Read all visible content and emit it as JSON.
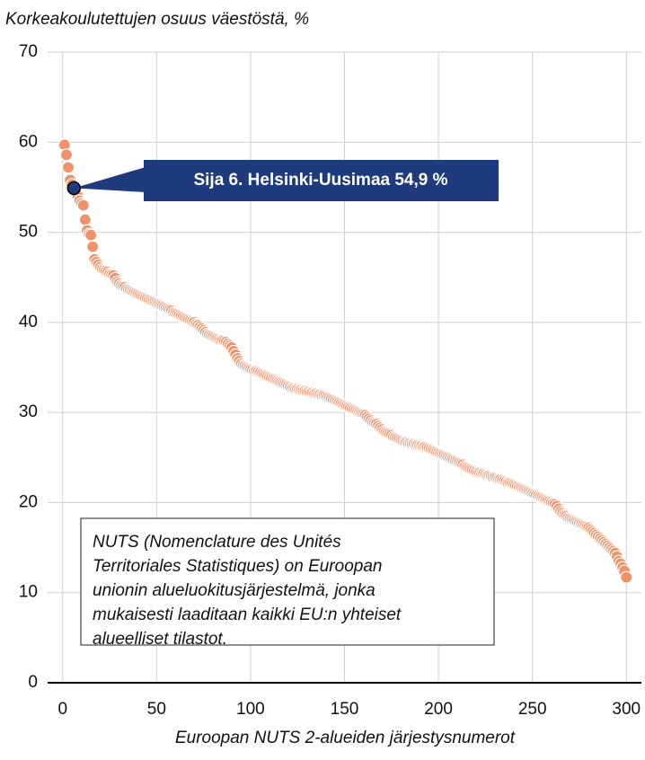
{
  "chart_data": {
    "type": "scatter",
    "title": "Korkeakoulutettujen osuus väestöstä, %",
    "xlabel": "Euroopan NUTS 2-alueiden järjestysnumerot",
    "xlim": [
      -8,
      308
    ],
    "ylim": [
      0,
      70
    ],
    "xticks": [
      0,
      50,
      100,
      150,
      200,
      250,
      300
    ],
    "yticks": [
      0,
      10,
      20,
      30,
      40,
      50,
      60,
      70
    ],
    "grid": true,
    "series": [
      {
        "color": "#f0916a",
        "x": [
          1,
          2,
          3,
          4,
          5,
          6,
          7,
          8,
          9,
          10,
          11,
          12,
          13,
          14,
          15,
          16,
          17,
          18,
          19,
          20,
          21,
          22,
          23,
          24,
          25,
          26,
          27,
          28,
          29,
          30,
          31,
          32,
          33,
          34,
          35,
          36,
          37,
          38,
          39,
          40,
          41,
          42,
          43,
          44,
          45,
          46,
          47,
          48,
          49,
          50,
          51,
          52,
          53,
          54,
          55,
          56,
          57,
          58,
          59,
          60,
          61,
          62,
          63,
          64,
          65,
          66,
          67,
          68,
          69,
          70,
          71,
          72,
          73,
          74,
          75,
          76,
          77,
          78,
          79,
          80,
          81,
          82,
          83,
          84,
          85,
          86,
          87,
          88,
          89,
          90,
          91,
          92,
          93,
          94,
          95,
          96,
          97,
          98,
          99,
          100,
          101,
          102,
          103,
          104,
          105,
          106,
          107,
          108,
          109,
          110,
          111,
          112,
          113,
          114,
          115,
          116,
          117,
          118,
          119,
          120,
          121,
          122,
          123,
          124,
          125,
          126,
          127,
          128,
          129,
          130,
          131,
          132,
          133,
          134,
          135,
          136,
          137,
          138,
          139,
          140,
          141,
          142,
          143,
          144,
          145,
          146,
          147,
          148,
          149,
          150,
          151,
          152,
          153,
          154,
          155,
          156,
          157,
          158,
          159,
          160,
          161,
          162,
          163,
          164,
          165,
          166,
          167,
          168,
          169,
          170,
          171,
          172,
          173,
          174,
          175,
          176,
          177,
          178,
          179,
          180,
          181,
          182,
          183,
          184,
          185,
          186,
          187,
          188,
          189,
          190,
          191,
          192,
          193,
          194,
          195,
          196,
          197,
          198,
          199,
          200,
          201,
          202,
          203,
          204,
          205,
          206,
          207,
          208,
          209,
          210,
          211,
          212,
          213,
          214,
          215,
          216,
          217,
          218,
          219,
          220,
          221,
          222,
          223,
          224,
          225,
          226,
          227,
          228,
          229,
          230,
          231,
          232,
          233,
          234,
          235,
          236,
          237,
          238,
          239,
          240,
          241,
          242,
          243,
          244,
          245,
          246,
          247,
          248,
          249,
          250,
          251,
          252,
          253,
          254,
          255,
          256,
          257,
          258,
          259,
          260,
          261,
          262,
          263,
          264,
          265,
          266,
          267,
          268,
          269,
          270,
          271,
          272,
          273,
          274,
          275,
          276,
          277,
          278,
          279,
          280,
          281,
          282,
          283,
          284,
          285,
          286,
          287,
          288,
          289,
          290,
          291,
          292,
          293,
          294,
          295,
          296,
          297,
          298,
          299,
          300
        ],
        "values": [
          59.7,
          58.6,
          57.2,
          55.8,
          55.3,
          54.9,
          54.5,
          54.0,
          53.5,
          53.2,
          53.0,
          51.4,
          50.2,
          49.8,
          49.7,
          48.4,
          47.0,
          46.7,
          46.4,
          46.1,
          45.9,
          45.8,
          45.7,
          45.6,
          45.4,
          45.3,
          45.2,
          44.9,
          44.5,
          44.3,
          44.1,
          44.0,
          43.9,
          43.7,
          43.6,
          43.5,
          43.4,
          43.3,
          43.2,
          43.1,
          43.0,
          42.9,
          42.8,
          42.7,
          42.6,
          42.5,
          42.4,
          42.3,
          42.2,
          42.1,
          42.0,
          41.9,
          41.8,
          41.7,
          41.6,
          41.5,
          41.4,
          41.3,
          41.1,
          41.0,
          40.9,
          40.8,
          40.7,
          40.6,
          40.5,
          40.4,
          40.3,
          40.2,
          40.1,
          40.0,
          39.8,
          39.7,
          39.5,
          39.3,
          39.1,
          38.9,
          38.7,
          38.6,
          38.5,
          38.4,
          38.3,
          38.2,
          38.1,
          38.0,
          38.0,
          37.9,
          37.8,
          37.6,
          37.4,
          37.2,
          36.8,
          36.4,
          36.0,
          35.7,
          35.4,
          35.2,
          35.1,
          35.0,
          34.9,
          34.8,
          34.7,
          34.6,
          34.6,
          34.5,
          34.4,
          34.3,
          34.2,
          34.1,
          34.0,
          33.9,
          33.8,
          33.7,
          33.6,
          33.5,
          33.4,
          33.3,
          33.2,
          33.1,
          33.0,
          32.9,
          32.8,
          32.7,
          32.7,
          32.6,
          32.6,
          32.5,
          32.5,
          32.4,
          32.4,
          32.3,
          32.3,
          32.2,
          32.2,
          32.1,
          32.1,
          32.0,
          32.0,
          31.9,
          31.9,
          31.8,
          31.7,
          31.6,
          31.5,
          31.4,
          31.3,
          31.2,
          31.1,
          31.0,
          30.9,
          30.8,
          30.7,
          30.6,
          30.5,
          30.4,
          30.3,
          30.2,
          30.1,
          30.0,
          29.9,
          29.8,
          29.7,
          29.5,
          29.3,
          29.1,
          28.9,
          28.8,
          28.7,
          28.5,
          28.3,
          28.1,
          27.9,
          27.8,
          27.7,
          27.6,
          27.5,
          27.3,
          27.2,
          27.1,
          27.0,
          26.9,
          26.8,
          26.7,
          26.7,
          26.6,
          26.6,
          26.5,
          26.5,
          26.4,
          26.4,
          26.3,
          26.3,
          26.2,
          26.2,
          26.1,
          26.0,
          25.9,
          25.8,
          25.7,
          25.6,
          25.5,
          25.4,
          25.3,
          25.2,
          25.1,
          25.0,
          24.9,
          24.8,
          24.7,
          24.6,
          24.5,
          24.4,
          24.3,
          24.2,
          24.0,
          23.9,
          23.8,
          23.7,
          23.6,
          23.5,
          23.4,
          23.3,
          23.3,
          23.2,
          23.2,
          23.1,
          23.0,
          23.0,
          22.9,
          22.8,
          22.8,
          22.7,
          22.6,
          22.6,
          22.5,
          22.4,
          22.3,
          22.2,
          22.2,
          22.1,
          22.0,
          21.9,
          21.8,
          21.7,
          21.6,
          21.5,
          21.4,
          21.3,
          21.2,
          21.1,
          21.0,
          20.9,
          20.8,
          20.7,
          20.6,
          20.5,
          20.4,
          20.3,
          20.2,
          20.1,
          20.0,
          19.9,
          19.8,
          19.6,
          19.3,
          19.0,
          18.8,
          18.6,
          18.5,
          18.3,
          18.2,
          18.1,
          18.0,
          17.9,
          17.8,
          17.7,
          17.6,
          17.5,
          17.4,
          17.3,
          17.2,
          17.0,
          16.8,
          16.6,
          16.4,
          16.2,
          16.0,
          15.8,
          15.6,
          15.4,
          15.2,
          15.0,
          14.8,
          14.6,
          14.4,
          14.0,
          13.5,
          13.2,
          12.8,
          12.4,
          11.7
        ]
      }
    ],
    "annotations": [
      {
        "text": "Sija 6. Helsinki-Uusimaa 54,9 %",
        "x": 6,
        "y": 54.9,
        "color": "#1f3b7d"
      }
    ],
    "note": [
      "NUTS (Nomenclature des Unités",
      "Territoriales Statistiques) on Euroopan",
      "unionin alueluokitusjärjestelmä, jonka",
      "mukaisesti laaditaan kaikki EU:n yhteiset",
      "alueelliset tilastot."
    ]
  }
}
